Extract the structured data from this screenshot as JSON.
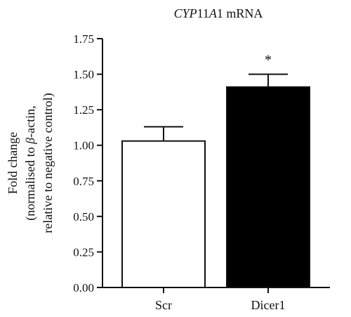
{
  "chart_data": {
    "type": "bar",
    "title": {
      "gene_a": "CYP",
      "gene_b": "11",
      "gene_c": "A",
      "gene_d": "1",
      "suffix": " mRNA"
    },
    "ylabel": {
      "line1": "Fold change",
      "line2_pre": "(normalised to ",
      "line2_greek": "β",
      "line2_post": "-actin,",
      "line3": "relative to negative control)"
    },
    "categories": [
      "Scr",
      "Dicer1"
    ],
    "values": [
      1.03,
      1.41
    ],
    "errors": [
      0.1,
      0.09
    ],
    "bar_fills": [
      "#ffffff",
      "#000000"
    ],
    "annotations": [
      "",
      "*"
    ],
    "ylim": [
      0,
      1.75
    ],
    "yticks": [
      0,
      0.25,
      0.5,
      0.75,
      1.0,
      1.25,
      1.5,
      1.75
    ],
    "ytick_labels": [
      "0.00",
      "0.25",
      "0.50",
      "0.75",
      "1.00",
      "1.25",
      "1.50",
      "1.75"
    ],
    "grid": false
  }
}
